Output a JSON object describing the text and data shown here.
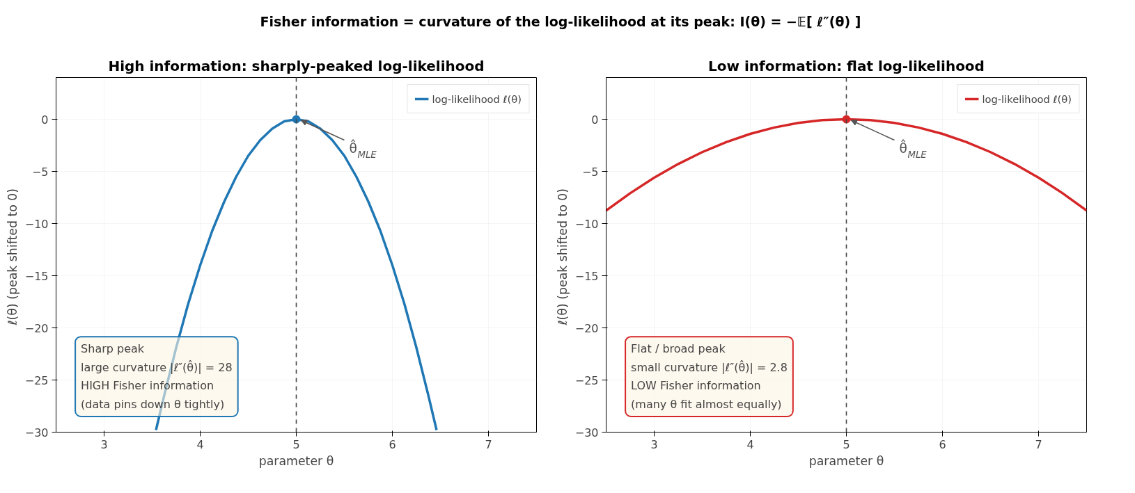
{
  "chart_data": [
    {
      "type": "line",
      "title": "High information: sharply-peaked log-likelihood",
      "xlabel": "parameter θ",
      "ylabel": "ℓ(θ)  (peak shifted to 0)",
      "xlim": [
        2.5,
        7.5
      ],
      "ylim": [
        -30,
        4
      ],
      "xticks": [
        3,
        4,
        5,
        6,
        7
      ],
      "yticks": [
        0,
        -5,
        -10,
        -15,
        -20,
        -25,
        -30
      ],
      "grid": true,
      "legend": "top right",
      "series": [
        {
          "name": "log-likelihood ℓ(θ)",
          "color": "#1f77b4",
          "x": [
            3.54,
            3.625,
            3.75,
            3.875,
            4,
            4.125,
            4.25,
            4.375,
            4.5,
            4.625,
            4.75,
            4.875,
            5,
            5.125,
            5.25,
            5.375,
            5.5,
            5.625,
            5.75,
            5.875,
            6,
            6.125,
            6.25,
            6.375,
            6.46
          ],
          "values": [
            -29.8,
            -26.5,
            -21.9,
            -17.7,
            -14,
            -10.7,
            -7.9,
            -5.5,
            -3.5,
            -2,
            -0.9,
            -0.2,
            0,
            -0.2,
            -0.9,
            -2,
            -3.5,
            -5.5,
            -7.9,
            -10.7,
            -14,
            -17.7,
            -21.9,
            -26.5,
            -29.8
          ]
        },
        {
          "type": "scatter",
          "color": "#1f77b4",
          "marker": "circle",
          "x": [
            5
          ],
          "values": [
            0
          ]
        }
      ],
      "ref_lines": [
        {
          "axis": "x",
          "value": 5,
          "color": "#444444",
          "line_style": "dashed"
        }
      ],
      "annotations": [
        "Fisher information = curvature of the log-likelihood at its peak:  I(θ) = −𝔼[ ℓ″(θ) ]",
        {
          "text": "θ̂$_{MLE}$",
          "x": 5,
          "y": 0
        },
        "Sharp peak\nlarge curvature |ℓ″(θ̂)| = 28\nHIGH Fisher information\n(data pins down θ tightly)"
      ]
    },
    {
      "type": "line",
      "title": "Low information: flat log-likelihood",
      "xlabel": "parameter θ",
      "ylabel": "ℓ(θ)  (peak shifted to 0)",
      "xlim": [
        2.5,
        7.5
      ],
      "ylim": [
        -30,
        4
      ],
      "xticks": [
        3,
        4,
        5,
        6,
        7
      ],
      "yticks": [
        0,
        -5,
        -10,
        -15,
        -20,
        -25,
        -30
      ],
      "grid": true,
      "legend": "top right",
      "series": [
        {
          "name": "log-likelihood ℓ(θ)",
          "color": "#d62728",
          "x": [
            2.5,
            2.75,
            3,
            3.25,
            3.5,
            3.75,
            4,
            4.25,
            4.5,
            4.75,
            5,
            5.25,
            5.5,
            5.75,
            6,
            6.25,
            6.5,
            6.75,
            7,
            7.25,
            7.5
          ],
          "values": [
            -8.75,
            -7.09,
            -5.6,
            -4.29,
            -3.15,
            -2.19,
            -1.4,
            -0.79,
            -0.35,
            -0.09,
            0,
            -0.09,
            -0.35,
            -0.79,
            -1.4,
            -2.19,
            -3.15,
            -4.29,
            -5.6,
            -7.09,
            -8.75
          ]
        },
        {
          "type": "scatter",
          "color": "#d62728",
          "marker": "circle",
          "x": [
            5
          ],
          "values": [
            0
          ]
        }
      ],
      "ref_lines": [
        {
          "axis": "x",
          "value": 5,
          "color": "#444444",
          "line_style": "dashed"
        }
      ],
      "annotations": [
        {
          "text": "θ̂$_{MLE}$",
          "x": 5,
          "y": 0
        },
        "Flat / broad peak\nsmall curvature |ℓ″(θ̂)| = 2.8\nLOW Fisher information\n(many θ fit almost equally)"
      ]
    }
  ]
}
